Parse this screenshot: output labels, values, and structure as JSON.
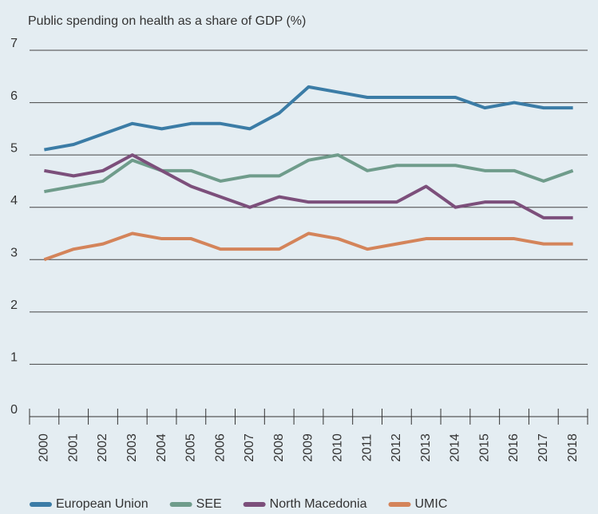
{
  "chart_data": {
    "type": "line",
    "title": "Public spending on health as a share of GDP (%)",
    "categories": [
      "2000",
      "2001",
      "2002",
      "2003",
      "2004",
      "2005",
      "2006",
      "2007",
      "2008",
      "2009",
      "2010",
      "2011",
      "2012",
      "2013",
      "2014",
      "2015",
      "2016",
      "2017",
      "2018"
    ],
    "series": [
      {
        "name": "European Union",
        "color": "#3b7ca6",
        "values": [
          5.1,
          5.2,
          5.4,
          5.6,
          5.5,
          5.6,
          5.6,
          5.5,
          5.8,
          6.3,
          6.2,
          6.1,
          6.1,
          6.1,
          6.1,
          5.9,
          6.0,
          5.9,
          5.9
        ]
      },
      {
        "name": "SEE",
        "color": "#6f9c8b",
        "values": [
          4.3,
          4.4,
          4.5,
          4.9,
          4.7,
          4.7,
          4.5,
          4.6,
          4.6,
          4.9,
          5.0,
          4.7,
          4.8,
          4.8,
          4.8,
          4.7,
          4.7,
          4.5,
          4.7
        ]
      },
      {
        "name": "North Macedonia",
        "color": "#7c4f7b",
        "values": [
          4.7,
          4.6,
          4.7,
          5.0,
          4.7,
          4.4,
          4.2,
          4.0,
          4.2,
          4.1,
          4.1,
          4.1,
          4.1,
          4.4,
          4.0,
          4.1,
          4.1,
          3.8,
          3.8
        ]
      },
      {
        "name": "UMIC",
        "color": "#d4845a",
        "values": [
          3.0,
          3.2,
          3.3,
          3.5,
          3.4,
          3.4,
          3.2,
          3.2,
          3.2,
          3.5,
          3.4,
          3.2,
          3.3,
          3.4,
          3.4,
          3.4,
          3.4,
          3.3,
          3.3
        ]
      }
    ],
    "ylim": [
      0,
      7
    ],
    "yticks": [
      0,
      1,
      2,
      3,
      4,
      5,
      6,
      7
    ],
    "grid": true,
    "legend": "bottom"
  }
}
